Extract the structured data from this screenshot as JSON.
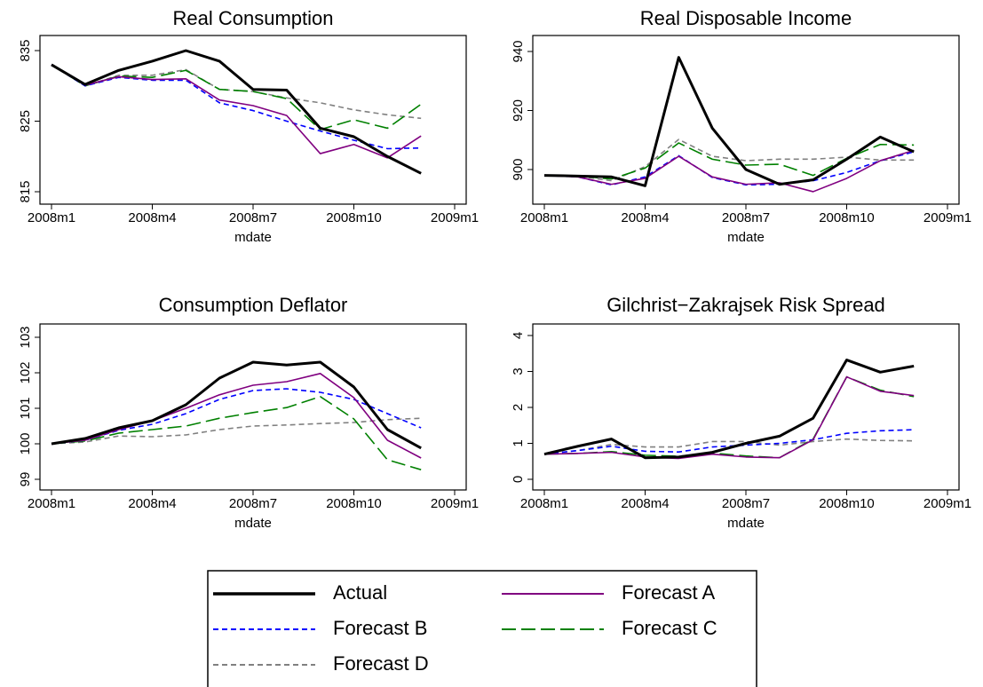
{
  "chart_data": [
    {
      "type": "line",
      "title": "Real Consumption",
      "x_label": "mdate",
      "x": [
        "2008m1",
        "2008m2",
        "2008m3",
        "2008m4",
        "2008m5",
        "2008m6",
        "2008m7",
        "2008m8",
        "2008m9",
        "2008m10",
        "2008m11",
        "2008m12"
      ],
      "xlim": [
        "2008m1",
        "2009m1"
      ],
      "xticks": [
        "2008m1",
        "2008m4",
        "2008m7",
        "2008m10",
        "2009m1"
      ],
      "ylim": [
        815,
        835
      ],
      "yticks": [
        815,
        825,
        835
      ],
      "series": [
        {
          "name": "Actual",
          "color": "#000000",
          "style": "thick",
          "values": [
            833,
            830.2,
            832.2,
            833.5,
            835,
            833.5,
            829.5,
            829.4,
            824,
            822.8,
            820,
            817.6
          ]
        },
        {
          "name": "Forecast A",
          "color": "#800080",
          "style": "solid",
          "values": [
            833,
            830.1,
            831.3,
            830.9,
            831,
            828,
            827.2,
            825.8,
            820.4,
            821.7,
            819.8,
            822.9
          ]
        },
        {
          "name": "Forecast B",
          "color": "#0000ff",
          "style": "dash",
          "values": [
            833,
            830,
            831.2,
            830.8,
            830.8,
            827.6,
            826.5,
            825,
            823.6,
            822.3,
            821.1,
            821.2
          ]
        },
        {
          "name": "Forecast C",
          "color": "#008000",
          "style": "longdash",
          "values": [
            833,
            830,
            831.4,
            831.2,
            832.2,
            829.5,
            829.2,
            828.2,
            823.8,
            825.2,
            824,
            827.4
          ]
        },
        {
          "name": "Forecast D",
          "color": "#808080",
          "style": "dash",
          "values": [
            833,
            830,
            831.5,
            831.5,
            832.3,
            829.5,
            829.2,
            828.3,
            827.6,
            826.6,
            825.9,
            825.4
          ]
        }
      ]
    },
    {
      "type": "line",
      "title": "Real Disposable Income",
      "x_label": "mdate",
      "x": [
        "2008m1",
        "2008m2",
        "2008m3",
        "2008m4",
        "2008m5",
        "2008m6",
        "2008m7",
        "2008m8",
        "2008m9",
        "2008m10",
        "2008m11",
        "2008m12"
      ],
      "xlim": [
        "2008m1",
        "2009m1"
      ],
      "xticks": [
        "2008m1",
        "2008m4",
        "2008m7",
        "2008m10",
        "2009m1"
      ],
      "ylim": [
        900,
        940
      ],
      "yticks": [
        900,
        920,
        940
      ],
      "series": [
        {
          "name": "Actual",
          "color": "#000000",
          "style": "thick",
          "values": [
            898,
            897.8,
            897.5,
            894.5,
            938,
            914,
            900,
            895,
            896.5,
            903.5,
            911,
            906
          ]
        },
        {
          "name": "Forecast A",
          "color": "#800080",
          "style": "solid",
          "values": [
            898,
            897.5,
            895,
            897,
            904.5,
            897.5,
            895,
            895.5,
            892.5,
            897,
            903,
            906.5
          ]
        },
        {
          "name": "Forecast B",
          "color": "#0000ff",
          "style": "dash",
          "values": [
            898,
            897.5,
            894.8,
            897.5,
            904.7,
            897.3,
            894.8,
            895,
            896.2,
            899,
            903,
            906
          ]
        },
        {
          "name": "Forecast C",
          "color": "#008000",
          "style": "longdash",
          "values": [
            898,
            897.8,
            896.8,
            900.5,
            909,
            903.5,
            901.5,
            901.8,
            898,
            903.8,
            908.5,
            908.3
          ]
        },
        {
          "name": "Forecast D",
          "color": "#808080",
          "style": "dash",
          "values": [
            898,
            897.8,
            896.2,
            901,
            910.2,
            904.5,
            903,
            903.5,
            903.5,
            904.2,
            903.2,
            903.2
          ]
        }
      ]
    },
    {
      "type": "line",
      "title": "Consumption Deflator",
      "x_label": "mdate",
      "x": [
        "2008m1",
        "2008m2",
        "2008m3",
        "2008m4",
        "2008m5",
        "2008m6",
        "2008m7",
        "2008m8",
        "2008m9",
        "2008m10",
        "2008m11",
        "2008m12"
      ],
      "xlim": [
        "2008m1",
        "2009m1"
      ],
      "xticks": [
        "2008m1",
        "2008m4",
        "2008m7",
        "2008m10",
        "2009m1"
      ],
      "ylim": [
        99,
        103
      ],
      "yticks": [
        99,
        100,
        101,
        102,
        103
      ],
      "series": [
        {
          "name": "Actual",
          "color": "#000000",
          "style": "thick",
          "values": [
            100,
            100.15,
            100.45,
            100.65,
            101.1,
            101.85,
            102.3,
            102.22,
            102.3,
            101.6,
            100.4,
            99.88
          ]
        },
        {
          "name": "Forecast A",
          "color": "#800080",
          "style": "solid",
          "values": [
            100,
            100.1,
            100.4,
            100.65,
            101,
            101.38,
            101.65,
            101.75,
            101.98,
            101.3,
            100.1,
            99.6
          ]
        },
        {
          "name": "Forecast B",
          "color": "#0000ff",
          "style": "dash",
          "values": [
            100,
            100.1,
            100.38,
            100.55,
            100.85,
            101.25,
            101.5,
            101.55,
            101.45,
            101.25,
            100.85,
            100.45
          ]
        },
        {
          "name": "Forecast C",
          "color": "#008000",
          "style": "longdash",
          "values": [
            100,
            100.08,
            100.3,
            100.4,
            100.5,
            100.72,
            100.88,
            101.02,
            101.33,
            100.7,
            99.55,
            99.27
          ]
        },
        {
          "name": "Forecast D",
          "color": "#808080",
          "style": "dash",
          "values": [
            100,
            100.05,
            100.22,
            100.2,
            100.25,
            100.4,
            100.5,
            100.53,
            100.57,
            100.6,
            100.68,
            100.72
          ]
        }
      ]
    },
    {
      "type": "line",
      "title": "Gilchrist−Zakrajsek Risk Spread",
      "x_label": "mdate",
      "x": [
        "2008m1",
        "2008m2",
        "2008m3",
        "2008m4",
        "2008m5",
        "2008m6",
        "2008m7",
        "2008m8",
        "2008m9",
        "2008m10",
        "2008m11",
        "2008m12"
      ],
      "xlim": [
        "2008m1",
        "2009m1"
      ],
      "xticks": [
        "2008m1",
        "2008m4",
        "2008m7",
        "2008m10",
        "2009m1"
      ],
      "ylim": [
        0,
        4
      ],
      "yticks": [
        0,
        1,
        2,
        3,
        4
      ],
      "series": [
        {
          "name": "Actual",
          "color": "#000000",
          "style": "thick",
          "values": [
            0.7,
            0.92,
            1.12,
            0.6,
            0.62,
            0.75,
            1,
            1.2,
            1.7,
            3.32,
            2.98,
            3.15
          ]
        },
        {
          "name": "Forecast A",
          "color": "#800080",
          "style": "solid",
          "values": [
            0.7,
            0.72,
            0.75,
            0.62,
            0.58,
            0.7,
            0.62,
            0.6,
            1.1,
            2.85,
            2.45,
            2.33
          ]
        },
        {
          "name": "Forecast B",
          "color": "#0000ff",
          "style": "dash",
          "values": [
            0.7,
            0.8,
            0.92,
            0.78,
            0.76,
            0.9,
            0.95,
            1,
            1.1,
            1.28,
            1.35,
            1.38
          ]
        },
        {
          "name": "Forecast C",
          "color": "#008000",
          "style": "longdash",
          "values": [
            0.7,
            0.72,
            0.77,
            0.67,
            0.64,
            0.73,
            0.65,
            0.6,
            1.12,
            2.85,
            2.48,
            2.3
          ]
        },
        {
          "name": "Forecast D",
          "color": "#808080",
          "style": "dash",
          "values": [
            0.7,
            0.8,
            0.97,
            0.9,
            0.9,
            1.05,
            1.05,
            0.95,
            1.05,
            1.12,
            1.08,
            1.07
          ]
        }
      ]
    }
  ]
}
